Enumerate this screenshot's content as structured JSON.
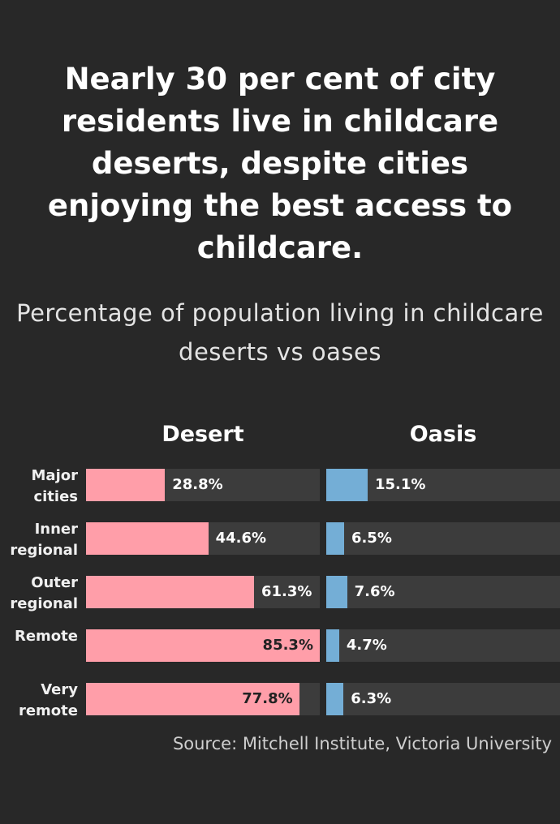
{
  "chart_data": {
    "type": "bar",
    "title": "Nearly 30 per cent of city residents live in childcare deserts, despite cities enjoying the best access to childcare.",
    "subtitle": "Percentage of population living in childcare deserts vs oases",
    "source": "Source: Mitchell Institute, Victoria University",
    "categories": [
      "Major cities",
      "Inner regional",
      "Outer regional",
      "Remote",
      "Very remote"
    ],
    "series": [
      {
        "name": "Desert",
        "color": "#ff9ea9",
        "values": [
          28.8,
          44.6,
          61.3,
          85.3,
          77.8
        ],
        "value_labels": [
          "28.8%",
          "44.6%",
          "61.3%",
          "85.3%",
          "77.8%"
        ]
      },
      {
        "name": "Oasis",
        "color": "#74aed6",
        "values": [
          15.1,
          6.5,
          7.6,
          4.7,
          6.3
        ],
        "value_labels": [
          "15.1%",
          "6.5%",
          "7.6%",
          "4.7%",
          "6.3%"
        ]
      }
    ],
    "xlim": [
      0,
      85.3
    ]
  }
}
